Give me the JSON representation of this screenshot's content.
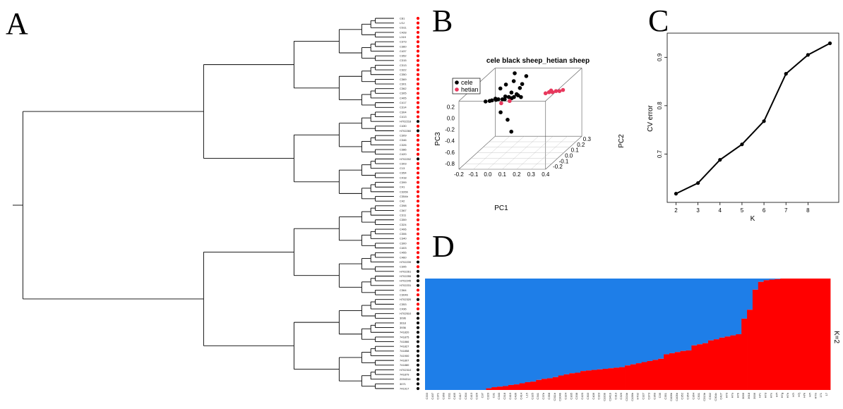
{
  "figure": {
    "panels": [
      "A",
      "B",
      "C",
      "D"
    ]
  },
  "panel_a": {
    "tips": [
      "C81",
      "LSJ",
      "CS11",
      "C428",
      "L319",
      "C373",
      "C360",
      "C437",
      "C352",
      "C315",
      "C313",
      "C322",
      "C350",
      "C369",
      "C301",
      "C362",
      "C305",
      "C405",
      "C417",
      "C314",
      "C304",
      "C413",
      "H702218",
      "C430",
      "H702260",
      "C309",
      "C346",
      "C326",
      "C386",
      "C420",
      "H702202",
      "C303",
      "C13",
      "C354",
      "C418",
      "C399",
      "C41",
      "C326b",
      "C354b",
      "C42",
      "C398",
      "C367",
      "C311",
      "C359",
      "C324",
      "C406",
      "C306",
      "C340",
      "C300",
      "C403",
      "C455",
      "C460",
      "H702239",
      "C395",
      "H702261",
      "H702255",
      "H702245",
      "H702231",
      "C364",
      "C304b",
      "H702320",
      "C353",
      "C436",
      "H702510",
      "3096",
      "3618",
      "3936",
      "741820",
      "741875",
      "741866",
      "741827",
      "741858",
      "741900",
      "741807",
      "741880",
      "H702310",
      "741879",
      "2094314",
      "3071",
      "741917"
    ],
    "dots": [
      "r",
      "r",
      "r",
      "r",
      "r",
      "r",
      "r",
      "r",
      "r",
      "r",
      "r",
      "r",
      "r",
      "r",
      "r",
      "r",
      "r",
      "r",
      "r",
      "r",
      "r",
      "r",
      "k",
      "r",
      "k",
      "r",
      "r",
      "r",
      "r",
      "r",
      "k",
      "r",
      "r",
      "r",
      "r",
      "r",
      "r",
      "r",
      "r",
      "r",
      "r",
      "r",
      "r",
      "r",
      "r",
      "r",
      "r",
      "r",
      "r",
      "r",
      "r",
      "r",
      "k",
      "r",
      "k",
      "k",
      "k",
      "k",
      "r",
      "r",
      "k",
      "r",
      "r",
      "k",
      "k",
      "k",
      "k",
      "k",
      "k",
      "k",
      "k",
      "k",
      "k",
      "k",
      "k",
      "k",
      "k",
      "k",
      "k",
      "k",
      "k"
    ]
  },
  "chart_data": [
    {
      "type": "scatter",
      "title": "cele black sheep_hetian sheep",
      "xlabel": "PC1",
      "ylabel": "PC2",
      "zlabel": "PC3",
      "x_ticks": [
        "-0.2",
        "-0.1",
        "0.0",
        "0.1",
        "0.2",
        "0.3",
        "0.4"
      ],
      "y_ticks": [
        "-0.2",
        "-0.1",
        "0.0",
        "0.1",
        "0.2",
        "0.3"
      ],
      "z_ticks": [
        "-0.8",
        "-0.6",
        "-0.4",
        "-0.2",
        "0.0",
        "0.2"
      ],
      "legend_position": "top-left",
      "series": [
        {
          "name": "cele",
          "color": "#000000",
          "points": [
            [
              -0.12,
              0.0,
              0.05
            ],
            [
              -0.1,
              0.02,
              0.04
            ],
            [
              -0.08,
              0.01,
              0.06
            ],
            [
              -0.06,
              0.03,
              0.05
            ],
            [
              -0.04,
              0.02,
              0.07
            ],
            [
              -0.02,
              0.04,
              0.05
            ],
            [
              0.0,
              0.03,
              0.06
            ],
            [
              0.02,
              0.05,
              0.08
            ],
            [
              0.04,
              0.05,
              0.06
            ],
            [
              0.06,
              0.04,
              0.09
            ],
            [
              0.08,
              0.06,
              0.1
            ],
            [
              0.1,
              0.06,
              0.07
            ],
            [
              -0.03,
              0.03,
              0.25
            ],
            [
              0.0,
              0.05,
              0.3
            ],
            [
              0.05,
              0.06,
              0.35
            ],
            [
              0.1,
              0.08,
              0.28
            ],
            [
              0.12,
              0.1,
              0.4
            ],
            [
              0.08,
              0.09,
              0.2
            ],
            [
              0.04,
              0.1,
              0.45
            ],
            [
              -0.02,
              0.01,
              -0.15
            ],
            [
              0.02,
              0.03,
              -0.3
            ],
            [
              0.05,
              0.02,
              -0.5
            ],
            [
              -0.06,
              0.02,
              0.08
            ],
            [
              0.0,
              0.04,
              0.1
            ],
            [
              0.03,
              0.07,
              0.14
            ],
            [
              0.07,
              0.06,
              0.12
            ]
          ]
        },
        {
          "name": "hetian",
          "color": "#e8385d",
          "points": [
            [
              0.22,
              0.18,
              0.02
            ],
            [
              0.24,
              0.19,
              0.03
            ],
            [
              0.26,
              0.2,
              0.02
            ],
            [
              0.28,
              0.21,
              0.03
            ],
            [
              0.3,
              0.22,
              0.02
            ],
            [
              0.32,
              0.23,
              0.03
            ],
            [
              0.25,
              0.2,
              0.05
            ],
            [
              0.03,
              0.04,
              0.02
            ],
            [
              -0.02,
              0.02,
              0.0
            ]
          ]
        }
      ]
    },
    {
      "type": "line",
      "xlabel": "K",
      "ylabel": "CV error",
      "x_ticks": [
        2,
        3,
        4,
        5,
        6,
        7,
        8
      ],
      "y_ticks": [
        0.7,
        0.8,
        0.9
      ],
      "xlim": [
        1.6,
        9.4
      ],
      "ylim": [
        0.6,
        0.95
      ],
      "x": [
        2,
        3,
        4,
        5,
        6,
        7,
        8,
        9
      ],
      "y": [
        0.618,
        0.64,
        0.688,
        0.72,
        0.768,
        0.866,
        0.905,
        0.929
      ]
    },
    {
      "type": "bar",
      "stacked": true,
      "panel_label": "K=2",
      "colors": [
        "#1e7ee8",
        "#ff0000"
      ],
      "categories": [
        "C333",
        "C437",
        "C371",
        "C360",
        "C311",
        "C405",
        "C417",
        "C304",
        "C413",
        "C326",
        "C37",
        "C320",
        "C31",
        "C340",
        "C318",
        "C419",
        "C436",
        "C414",
        "L15",
        "C325",
        "C341",
        "C37b",
        "C358",
        "C311b",
        "C304b",
        "C324",
        "C305",
        "C338",
        "C420",
        "C303",
        "C406",
        "C323",
        "C320b",
        "C341b",
        "C313",
        "C329",
        "C324b",
        "C436b",
        "H702",
        "C327",
        "C373",
        "C369",
        "C35",
        "C351",
        "C406b",
        "C405b",
        "C352",
        "C354",
        "C364",
        "C301",
        "C313b",
        "C302",
        "C304c",
        "C427",
        "H70",
        "H7a",
        "H7b",
        "3096",
        "3618",
        "3936",
        "H7c",
        "H7d",
        "H7e",
        "H7f",
        "H7g",
        "H7h",
        "H7i",
        "H7j",
        "H7k",
        "H7l",
        "H7m",
        "171",
        "17"
      ],
      "values_blue": [
        1,
        1,
        1,
        1,
        1,
        1,
        1,
        1,
        1,
        1,
        1,
        0.985,
        0.975,
        0.97,
        0.965,
        0.955,
        0.95,
        0.94,
        0.93,
        0.925,
        0.91,
        0.9,
        0.895,
        0.885,
        0.87,
        0.86,
        0.85,
        0.845,
        0.83,
        0.825,
        0.82,
        0.815,
        0.81,
        0.805,
        0.8,
        0.795,
        0.78,
        0.77,
        0.76,
        0.75,
        0.74,
        0.73,
        0.72,
        0.68,
        0.67,
        0.66,
        0.65,
        0.645,
        0.6,
        0.59,
        0.58,
        0.555,
        0.545,
        0.53,
        0.52,
        0.51,
        0.5,
        0.36,
        0.28,
        0.1,
        0.03,
        0.015,
        0.01,
        0.005,
        0,
        0,
        0,
        0,
        0,
        0,
        0,
        0,
        0
      ]
    }
  ]
}
